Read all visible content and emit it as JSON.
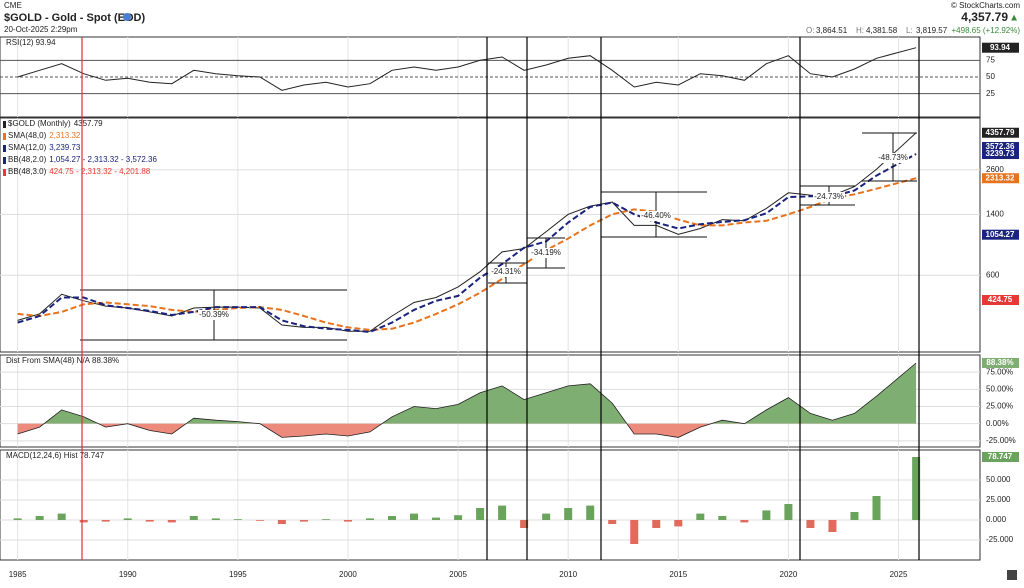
{
  "header": {
    "exchange": "CME",
    "title": "$GOLD - Gold - Spot (EOD)",
    "date": "20-Oct-2025 2:29pm",
    "credit": "© StockCharts.com",
    "price": "4,357.79",
    "arrow": "▲",
    "change": "+498.65 (+12.92%)",
    "ohlc": [
      {
        "key": "O:",
        "value": "3,864.51"
      },
      {
        "key": "H:",
        "value": "4,381.58"
      },
      {
        "key": "L:",
        "value": "3,819.57"
      }
    ]
  },
  "chart_data": [
    {
      "type": "line",
      "title": "RSI(12)",
      "last": 93.94,
      "ylim": [
        -10,
        110
      ],
      "yticks": [
        75,
        50,
        25
      ],
      "x": [
        1985,
        1986,
        1987,
        1988,
        1989,
        1990,
        1991,
        1992,
        1993,
        1994,
        1995,
        1996,
        1997,
        1998,
        1999,
        2000,
        2001,
        2002,
        2003,
        2004,
        2005,
        2006,
        2007,
        2008,
        2009,
        2010,
        2011,
        2012,
        2013,
        2014,
        2015,
        2016,
        2017,
        2018,
        2019,
        2020,
        2021,
        2022,
        2023,
        2024,
        2025.8
      ],
      "series": [
        {
          "name": "RSI(12)",
          "color": "#222222",
          "values": [
            50,
            60,
            70,
            55,
            45,
            48,
            42,
            40,
            60,
            55,
            52,
            50,
            30,
            38,
            42,
            35,
            40,
            60,
            65,
            60,
            65,
            75,
            80,
            60,
            68,
            78,
            82,
            60,
            35,
            42,
            38,
            55,
            52,
            45,
            70,
            82,
            55,
            50,
            62,
            78,
            93.94
          ]
        }
      ]
    },
    {
      "type": "line",
      "log": true,
      "ylim": [
        206,
        5350
      ],
      "yticks": [
        600,
        1400,
        2600
      ],
      "x": [
        1985,
        1986,
        1987,
        1988,
        1989,
        1990,
        1991,
        1992,
        1993,
        1994,
        1995,
        1996,
        1997,
        1998,
        1999,
        2000,
        2001,
        2002,
        2003,
        2004,
        2005,
        2006,
        2007,
        2008,
        2009,
        2010,
        2011,
        2012,
        2013,
        2014,
        2015,
        2016,
        2017,
        2018,
        2019,
        2020,
        2021,
        2022,
        2023,
        2024,
        2025.8
      ],
      "series": [
        {
          "name": "$GOLD (Monthly)",
          "color": "#222222",
          "last": 4357.79,
          "values": [
            320,
            350,
            460,
            420,
            390,
            380,
            360,
            340,
            380,
            385,
            385,
            380,
            300,
            290,
            290,
            275,
            275,
            340,
            410,
            440,
            510,
            630,
            830,
            870,
            1100,
            1400,
            1570,
            1660,
            1200,
            1200,
            1060,
            1150,
            1300,
            1280,
            1520,
            1890,
            1830,
            1820,
            2060,
            2620,
            4357.79
          ]
        },
        {
          "name": "SMA(48,0)",
          "color": "#e8731c",
          "dash": true,
          "last": {
            "value": 2313.32,
            "label": "2,313.32"
          },
          "values": [
            350,
            340,
            360,
            400,
            410,
            400,
            390,
            370,
            360,
            370,
            380,
            385,
            370,
            340,
            310,
            290,
            280,
            285,
            310,
            350,
            400,
            470,
            570,
            700,
            850,
            1000,
            1200,
            1400,
            1500,
            1450,
            1300,
            1200,
            1200,
            1250,
            1280,
            1400,
            1550,
            1750,
            1850,
            2000,
            2313.32
          ]
        },
        {
          "name": "SMA(12,0)",
          "color": "#1a237e",
          "dash": true,
          "last": {
            "value": 3239.73,
            "label": "3,239.73"
          },
          "values": [
            310,
            340,
            440,
            440,
            395,
            380,
            365,
            345,
            360,
            385,
            385,
            385,
            320,
            295,
            285,
            280,
            272,
            310,
            370,
            420,
            450,
            580,
            700,
            880,
            960,
            1250,
            1550,
            1650,
            1400,
            1250,
            1150,
            1220,
            1260,
            1290,
            1420,
            1780,
            1800,
            1800,
            1950,
            2400,
            3239.73
          ]
        }
      ],
      "bands": [
        {
          "name": "BB(48,2.0)",
          "label": "1,054.27 - 2,313.32 - 3,572.36",
          "color": "#1a237e"
        },
        {
          "name": "BB(48,3.0)",
          "label": "424.75 - 2,313.32 - 4,201.88",
          "color": "#e53935"
        }
      ],
      "badges": [
        {
          "value": 3572.36,
          "color": "#1a237e"
        },
        {
          "value": 3239.73,
          "color": "#1a237e"
        },
        {
          "value": 2313.32,
          "color": "#e8731c"
        },
        {
          "value": 1054.27,
          "color": "#1a237e"
        },
        {
          "value": 424.75,
          "color": "#e53935"
        }
      ],
      "annotations": [
        "-50.39%",
        "-24.31%",
        "-34.19%",
        "-46.40%",
        "-24.73%",
        "-48.73%"
      ]
    },
    {
      "type": "area",
      "title": "Dist From SMA(48) N/A",
      "last": {
        "value": 88.38,
        "label": "88.38%"
      },
      "ylim": [
        -34,
        100
      ],
      "yticks": [
        {
          "value": 75,
          "label": "75.00%"
        },
        {
          "value": 50,
          "label": "50.00%"
        },
        {
          "value": 25,
          "label": "25.00%"
        },
        {
          "value": 0,
          "label": "0.00%"
        },
        {
          "value": -25,
          "label": "-25.00%"
        }
      ],
      "colors": {
        "positive": "#7fae72",
        "negative": "#ec8a7c"
      },
      "x": [
        1985,
        1986,
        1987,
        1988,
        1989,
        1990,
        1991,
        1992,
        1993,
        1994,
        1995,
        1996,
        1997,
        1998,
        1999,
        2000,
        2001,
        2002,
        2003,
        2004,
        2005,
        2006,
        2007,
        2008,
        2009,
        2010,
        2011,
        2012,
        2013,
        2014,
        2015,
        2016,
        2017,
        2018,
        2019,
        2020,
        2021,
        2022,
        2023,
        2024,
        2025.8
      ],
      "values": [
        -15,
        -5,
        20,
        10,
        -5,
        0,
        -10,
        -15,
        8,
        5,
        3,
        0,
        -20,
        -18,
        -15,
        -18,
        -12,
        10,
        25,
        22,
        28,
        45,
        55,
        35,
        45,
        55,
        58,
        30,
        -15,
        -15,
        -20,
        -5,
        5,
        0,
        20,
        38,
        15,
        5,
        15,
        40,
        88.38
      ]
    },
    {
      "type": "bar",
      "title": "MACD(12,24,6) Hist",
      "last": 78.747,
      "ylim": [
        -50,
        87.5
      ],
      "yticks": [
        {
          "value": 50,
          "label": "50.000"
        },
        {
          "value": 25,
          "label": "25.000"
        },
        {
          "value": 0,
          "label": "0.000"
        },
        {
          "value": -25,
          "label": "-25.000"
        }
      ],
      "colors": {
        "positive": "#6aa35c",
        "negative": "#e06a5c"
      },
      "xlim": [
        1984.2,
        2028.7
      ],
      "xticks": [
        1985,
        1990,
        1995,
        2000,
        2005,
        2010,
        2015,
        2020,
        2025
      ],
      "x": [
        1985,
        1986,
        1987,
        1988,
        1989,
        1990,
        1991,
        1992,
        1993,
        1994,
        1995,
        1996,
        1997,
        1998,
        1999,
        2000,
        2001,
        2002,
        2003,
        2004,
        2005,
        2006,
        2007,
        2008,
        2009,
        2010,
        2011,
        2012,
        2013,
        2014,
        2015,
        2016,
        2017,
        2018,
        2019,
        2020,
        2021,
        2022,
        2023,
        2024,
        2025.8
      ],
      "values": [
        2,
        5,
        8,
        -3,
        -2,
        2,
        -2,
        -3,
        5,
        2,
        1,
        -1,
        -5,
        -2,
        1,
        -2,
        2,
        5,
        8,
        3,
        6,
        15,
        18,
        -10,
        8,
        15,
        18,
        -5,
        -30,
        -10,
        -8,
        8,
        5,
        -3,
        12,
        20,
        -10,
        -15,
        10,
        30,
        78.747
      ]
    }
  ]
}
